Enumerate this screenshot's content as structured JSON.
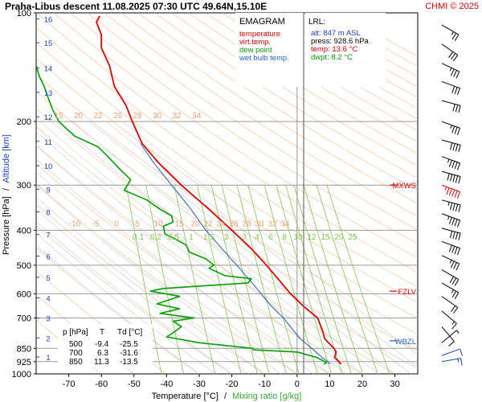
{
  "header": {
    "title": "Praha-Libus   descent   11.08.2025 07:30 UTC  49.64N,15.10E",
    "credit": "CHMI © 2025"
  },
  "legend": {
    "title": "EMAGRAM",
    "items": [
      {
        "label": "temperature",
        "color": "#e00000"
      },
      {
        "label": "virt.temp.",
        "color": "#e00000"
      },
      {
        "label": "dew point",
        "color": "#00a000"
      },
      {
        "label": "wet bulb temp.",
        "color": "#2060c0"
      }
    ]
  },
  "lrl": {
    "title": "LRL:",
    "alt": "alt: 847 m ASL",
    "press": "press: 928.6 hPa",
    "temp": "temp: 13.6 °C",
    "dwpt": "dwpt: 8.2 °C"
  },
  "table": {
    "headers": [
      "p [hPa]",
      "T",
      "Td [°C]"
    ],
    "rows": [
      [
        "500",
        "-9.4",
        "-25.5"
      ],
      [
        "700",
        "6.3",
        "-31.6"
      ],
      [
        "850",
        "11.3",
        "-13.5"
      ]
    ]
  },
  "levels": [
    {
      "label": "MXWS",
      "pressure": 300
    },
    {
      "label": "FZLV",
      "pressure": 590
    },
    {
      "label": "WBZL",
      "pressure": 810
    }
  ],
  "chart_data": {
    "type": "line",
    "xlabel": "Temperature [°C]",
    "xlabel_sep": "/",
    "xlabel2": "Mixing ratio [g/kg]",
    "ylabel": "Pressure [hPa]",
    "ylabel_sep": "/",
    "ylabel2": "Altitude [km]",
    "xlim": [
      -80,
      37
    ],
    "ylim": [
      1000,
      100
    ],
    "y_scale": "log",
    "xticks": [
      -70,
      -60,
      -50,
      -40,
      -30,
      -20,
      -10,
      0,
      10,
      20,
      30
    ],
    "pressure_levels": [
      100,
      200,
      300,
      400,
      500,
      600,
      700,
      850,
      925,
      1000
    ],
    "altitude_km": [
      {
        "km": 1,
        "p": 898
      },
      {
        "km": 2,
        "p": 795
      },
      {
        "km": 3,
        "p": 701
      },
      {
        "km": 4,
        "p": 616
      },
      {
        "km": 5,
        "p": 540
      },
      {
        "km": 6,
        "p": 472
      },
      {
        "km": 7,
        "p": 411
      },
      {
        "km": 8,
        "p": 356
      },
      {
        "km": 9,
        "p": 308
      },
      {
        "km": 10,
        "p": 265
      },
      {
        "km": 11,
        "p": 227
      },
      {
        "km": 12,
        "p": 194
      },
      {
        "km": 13,
        "p": 166
      },
      {
        "km": 14,
        "p": 142
      },
      {
        "km": 15,
        "p": 121
      },
      {
        "km": 16,
        "p": 104
      }
    ],
    "theta_labels": [
      "15",
      "20",
      "22",
      "26",
      "28",
      "30",
      "32",
      "34"
    ],
    "thetae_labels": [
      "-10",
      "-5",
      "0",
      "5",
      "10",
      "15",
      "20",
      "22",
      "24",
      "26",
      "28",
      "30",
      "32",
      "34"
    ],
    "mixing_ratio_labels": [
      "0.1",
      "0.2",
      "0.5",
      "1",
      "1.5",
      "2",
      "3",
      "4",
      "6",
      "8",
      "10",
      "12",
      "15",
      "20",
      "25"
    ],
    "series": [
      {
        "name": "temperature",
        "color": "#e00000",
        "points": [
          {
            "p": 940,
            "t": 13.5
          },
          {
            "p": 925,
            "t": 12.8
          },
          {
            "p": 900,
            "t": 11.5
          },
          {
            "p": 870,
            "t": 12.0
          },
          {
            "p": 850,
            "t": 11.3
          },
          {
            "p": 800,
            "t": 8.5
          },
          {
            "p": 760,
            "t": 7.8
          },
          {
            "p": 700,
            "t": 6.3
          },
          {
            "p": 650,
            "t": 2.0
          },
          {
            "p": 600,
            "t": -2.0
          },
          {
            "p": 550,
            "t": -5.5
          },
          {
            "p": 500,
            "t": -9.4
          },
          {
            "p": 450,
            "t": -14.0
          },
          {
            "p": 400,
            "t": -20.0
          },
          {
            "p": 350,
            "t": -27.0
          },
          {
            "p": 300,
            "t": -35.5
          },
          {
            "p": 260,
            "t": -42.5
          },
          {
            "p": 230,
            "t": -47.5
          },
          {
            "p": 200,
            "t": -50.5
          },
          {
            "p": 180,
            "t": -52.5
          },
          {
            "p": 160,
            "t": -56.0
          },
          {
            "p": 140,
            "t": -57.5
          },
          {
            "p": 125,
            "t": -60.0
          },
          {
            "p": 115,
            "t": -60.0
          },
          {
            "p": 106,
            "t": -61.5
          },
          {
            "p": 102,
            "t": -60.5
          }
        ]
      },
      {
        "name": "wet bulb temp.",
        "color": "#2060c0",
        "points": [
          {
            "p": 940,
            "t": 10.2
          },
          {
            "p": 925,
            "t": 9.4
          },
          {
            "p": 900,
            "t": 7.6
          },
          {
            "p": 850,
            "t": 4.5
          },
          {
            "p": 800,
            "t": 1.0
          },
          {
            "p": 700,
            "t": -4.2
          },
          {
            "p": 650,
            "t": -7.8
          },
          {
            "p": 600,
            "t": -11.0
          },
          {
            "p": 550,
            "t": -14.5
          },
          {
            "p": 500,
            "t": -18.5
          },
          {
            "p": 450,
            "t": -23.0
          },
          {
            "p": 400,
            "t": -28.0
          },
          {
            "p": 350,
            "t": -32.5
          },
          {
            "p": 300,
            "t": -38.5
          },
          {
            "p": 260,
            "t": -44.0
          },
          {
            "p": 230,
            "t": -48.0
          }
        ]
      },
      {
        "name": "dew point",
        "color": "#00a000",
        "points": [
          {
            "p": 940,
            "t": 8.2
          },
          {
            "p": 930,
            "t": 9.0
          },
          {
            "p": 900,
            "t": 6.0
          },
          {
            "p": 870,
            "t": 0.0
          },
          {
            "p": 858,
            "t": -13.5
          },
          {
            "p": 850,
            "t": -13.5
          },
          {
            "p": 820,
            "t": -30.0
          },
          {
            "p": 790,
            "t": -40.0
          },
          {
            "p": 770,
            "t": -38.0
          },
          {
            "p": 740,
            "t": -35.5
          },
          {
            "p": 715,
            "t": -38.0
          },
          {
            "p": 700,
            "t": -31.6
          },
          {
            "p": 680,
            "t": -42.0
          },
          {
            "p": 660,
            "t": -36.0
          },
          {
            "p": 640,
            "t": -43.0
          },
          {
            "p": 610,
            "t": -36.0
          },
          {
            "p": 590,
            "t": -45.0
          },
          {
            "p": 580,
            "t": -41.0
          },
          {
            "p": 560,
            "t": -15.0
          },
          {
            "p": 545,
            "t": -14.0
          },
          {
            "p": 535,
            "t": -22.0
          },
          {
            "p": 510,
            "t": -27.0
          },
          {
            "p": 500,
            "t": -25.5
          },
          {
            "p": 480,
            "t": -28.0
          },
          {
            "p": 460,
            "t": -33.0
          },
          {
            "p": 440,
            "t": -34.0
          },
          {
            "p": 420,
            "t": -38.0
          },
          {
            "p": 410,
            "t": -40.5
          },
          {
            "p": 390,
            "t": -41.0
          },
          {
            "p": 380,
            "t": -38.0
          },
          {
            "p": 365,
            "t": -38.5
          },
          {
            "p": 350,
            "t": -42.0
          },
          {
            "p": 330,
            "t": -46.0
          },
          {
            "p": 310,
            "t": -53.0
          },
          {
            "p": 290,
            "t": -51.0
          },
          {
            "p": 270,
            "t": -54.5
          },
          {
            "p": 250,
            "t": -58.0
          },
          {
            "p": 235,
            "t": -61.0
          },
          {
            "p": 220,
            "t": -68.0
          },
          {
            "p": 210,
            "t": -70.5
          },
          {
            "p": 200,
            "t": -73.0
          },
          {
            "p": 185,
            "t": -75.0
          },
          {
            "p": 170,
            "t": -76.5
          },
          {
            "p": 160,
            "t": -77.5
          },
          {
            "p": 150,
            "t": -79.0
          },
          {
            "p": 140,
            "t": -80.0
          }
        ]
      }
    ],
    "wind_barbs": [
      {
        "p": 108,
        "dir": 300,
        "kt": 25
      },
      {
        "p": 122,
        "dir": 305,
        "kt": 30
      },
      {
        "p": 138,
        "dir": 295,
        "kt": 35
      },
      {
        "p": 155,
        "dir": 290,
        "kt": 30
      },
      {
        "p": 175,
        "dir": 285,
        "kt": 30
      },
      {
        "p": 200,
        "dir": 290,
        "kt": 35
      },
      {
        "p": 225,
        "dir": 285,
        "kt": 40
      },
      {
        "p": 250,
        "dir": 290,
        "kt": 45
      },
      {
        "p": 275,
        "dir": 285,
        "kt": 50
      },
      {
        "p": 300,
        "dir": 290,
        "kt": 55
      },
      {
        "p": 330,
        "dir": 285,
        "kt": 45
      },
      {
        "p": 360,
        "dir": 290,
        "kt": 45
      },
      {
        "p": 395,
        "dir": 285,
        "kt": 40
      },
      {
        "p": 430,
        "dir": 290,
        "kt": 40
      },
      {
        "p": 470,
        "dir": 295,
        "kt": 35
      },
      {
        "p": 515,
        "dir": 300,
        "kt": 30
      },
      {
        "p": 560,
        "dir": 300,
        "kt": 25
      },
      {
        "p": 610,
        "dir": 305,
        "kt": 20
      },
      {
        "p": 670,
        "dir": 310,
        "kt": 15
      },
      {
        "p": 740,
        "dir": 320,
        "kt": 10
      },
      {
        "p": 820,
        "dir": 230,
        "kt": 5
      },
      {
        "p": 890,
        "dir": 250,
        "kt": 10
      },
      {
        "p": 925,
        "dir": 260,
        "kt": 15
      }
    ]
  }
}
